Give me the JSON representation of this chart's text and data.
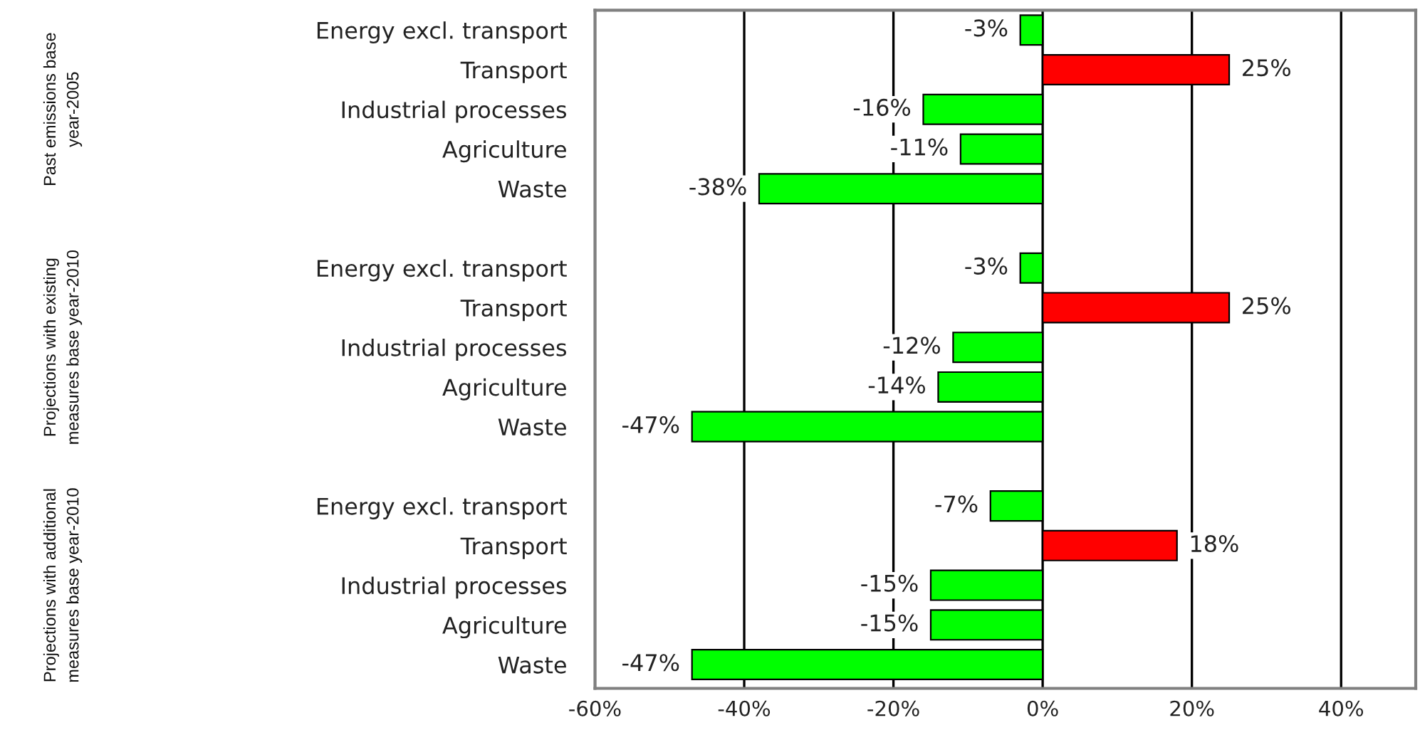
{
  "chart_data": {
    "type": "bar",
    "orientation": "horizontal",
    "categories": [
      "Energy excl. transport",
      "Transport",
      "Industrial processes",
      "Agriculture",
      "Waste",
      null,
      "Energy excl. transport",
      "Transport",
      "Industrial processes",
      "Agriculture",
      "Waste",
      null,
      "Energy excl. transport",
      "Transport",
      "Industrial processes",
      "Agriculture",
      "Waste"
    ],
    "values": [
      -3,
      25,
      -16,
      -11,
      -38,
      null,
      -3,
      25,
      -12,
      -14,
      -47,
      null,
      -7,
      18,
      -15,
      -15,
      -47
    ],
    "colors": [
      "#00ff00",
      "#ff0000",
      "#00ff00",
      "#00ff00",
      "#00ff00",
      null,
      "#00ff00",
      "#ff0000",
      "#00ff00",
      "#00ff00",
      "#00ff00",
      null,
      "#00ff00",
      "#ff0000",
      "#00ff00",
      "#00ff00",
      "#00ff00"
    ],
    "value_labels": [
      "-3%",
      "25%",
      "-16%",
      "-11%",
      "-38%",
      null,
      "-3%",
      "25%",
      "-12%",
      "-14%",
      "-47%",
      null,
      "-7%",
      "18%",
      "-15%",
      "-15%",
      "-47%"
    ],
    "xlim": [
      -60,
      50
    ],
    "xticks": [
      {
        "value": -60,
        "label": "-60%"
      },
      {
        "value": -40,
        "label": "-40%"
      },
      {
        "value": -20,
        "label": "-20%"
      },
      {
        "value": 0,
        "label": "0%"
      },
      {
        "value": 20,
        "label": "20%"
      },
      {
        "value": 40,
        "label": "40%"
      }
    ],
    "grid": "x",
    "annotations": [
      "Past emissions base\nyear-2005",
      "Projections with existing\nmeasures base year-2010",
      "Projections with additional\nmeasures base year-2010"
    ]
  }
}
